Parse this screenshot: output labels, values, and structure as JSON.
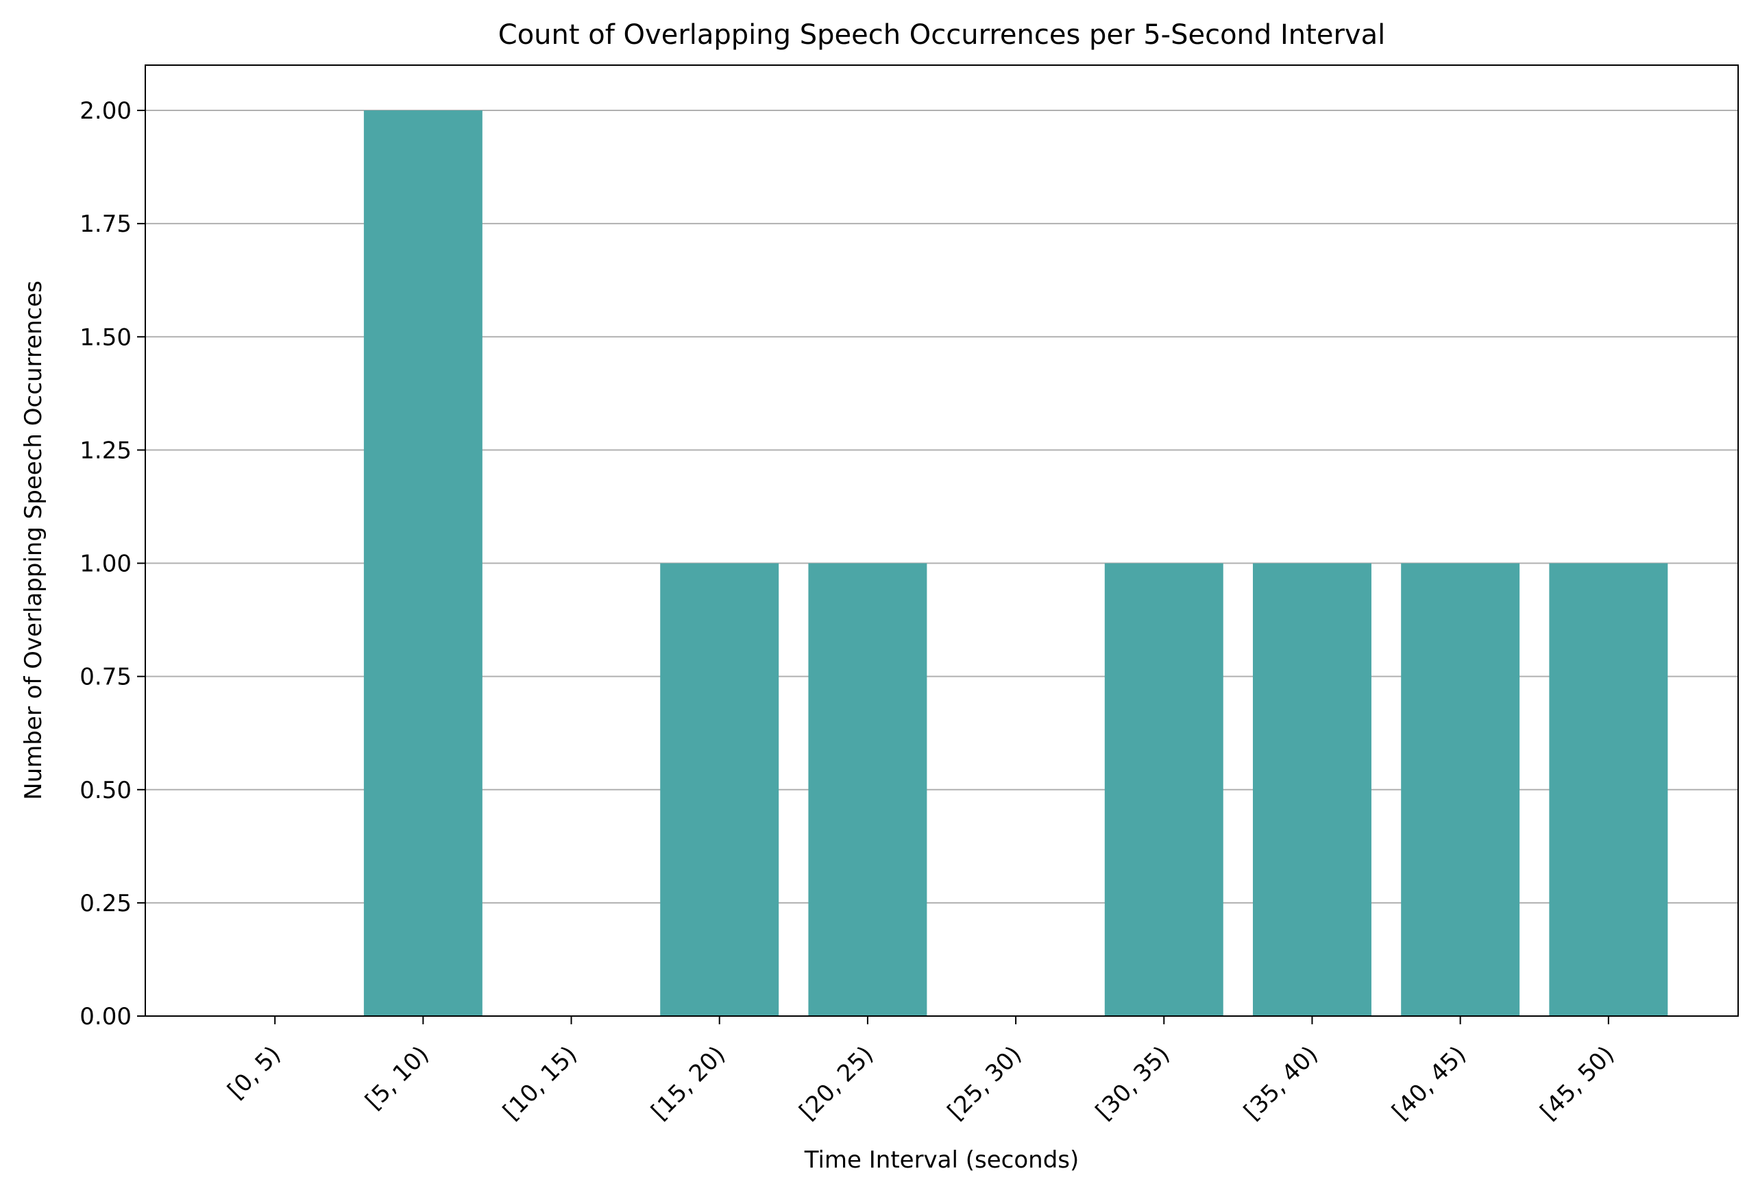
{
  "chart_data": {
    "type": "bar",
    "title": "Count of Overlapping Speech Occurrences per 5-Second Interval",
    "xlabel": "Time Interval (seconds)",
    "ylabel": "Number of Overlapping Speech Occurrences",
    "categories": [
      "[0, 5)",
      "[5, 10)",
      "[10, 15)",
      "[15, 20)",
      "[20, 25)",
      "[25, 30)",
      "[30, 35)",
      "[35, 40)",
      "[40, 45)",
      "[45, 50)"
    ],
    "values": [
      0,
      2,
      0,
      1,
      1,
      0,
      1,
      1,
      1,
      1
    ],
    "ylim": [
      0,
      2.1
    ],
    "yticks": [
      "0.00",
      "0.25",
      "0.50",
      "0.75",
      "1.00",
      "1.25",
      "1.50",
      "1.75",
      "2.00"
    ],
    "grid": "y",
    "legend": "none",
    "bar_color": "#4ca6a6",
    "grid_color": "#b0b0b0"
  }
}
